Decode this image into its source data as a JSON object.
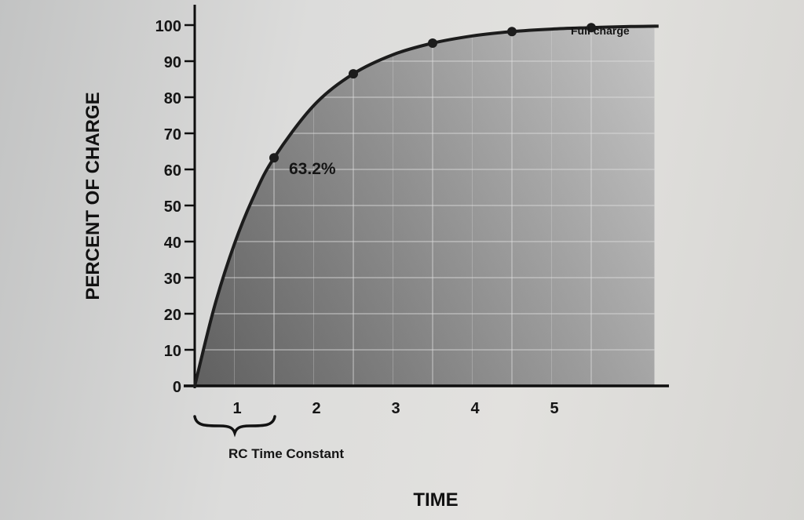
{
  "chart_data": {
    "type": "area",
    "title": "",
    "ylabel": "PERCENT OF CHARGE",
    "xlabel": "TIME",
    "y_ticks": [
      0,
      10,
      20,
      30,
      40,
      50,
      60,
      70,
      80,
      90,
      100
    ],
    "x_ticks": [
      1,
      2,
      3,
      4,
      5
    ],
    "ylim": [
      0,
      100
    ],
    "xlim": [
      0,
      5.8
    ],
    "grid": true,
    "series": [
      {
        "x": [
          0,
          0.25,
          0.5,
          0.75,
          1,
          1.5,
          2,
          2.5,
          3,
          3.5,
          4,
          4.5,
          5,
          5.5,
          5.8
        ],
        "values": [
          0,
          22.1,
          39.3,
          52.8,
          63.2,
          77.7,
          86.5,
          91.8,
          95.0,
          97.0,
          98.2,
          98.9,
          99.3,
          99.6,
          99.7
        ]
      }
    ],
    "markers": [
      {
        "x": 1,
        "y": 63.2
      },
      {
        "x": 2,
        "y": 86.5
      },
      {
        "x": 3,
        "y": 95.0
      },
      {
        "x": 4,
        "y": 98.2
      },
      {
        "x": 5,
        "y": 99.3
      }
    ],
    "annotations": {
      "marker_label": "63.2%",
      "full_charge": "Full charge",
      "rc_time_constant": "RC Time Constant"
    }
  },
  "colors": {
    "curve": "#1c1c1c",
    "area_dark": "#6b6b6b",
    "area_light": "#bdbdbd",
    "grid": "#dedede",
    "axis": "#0e0e0e"
  }
}
